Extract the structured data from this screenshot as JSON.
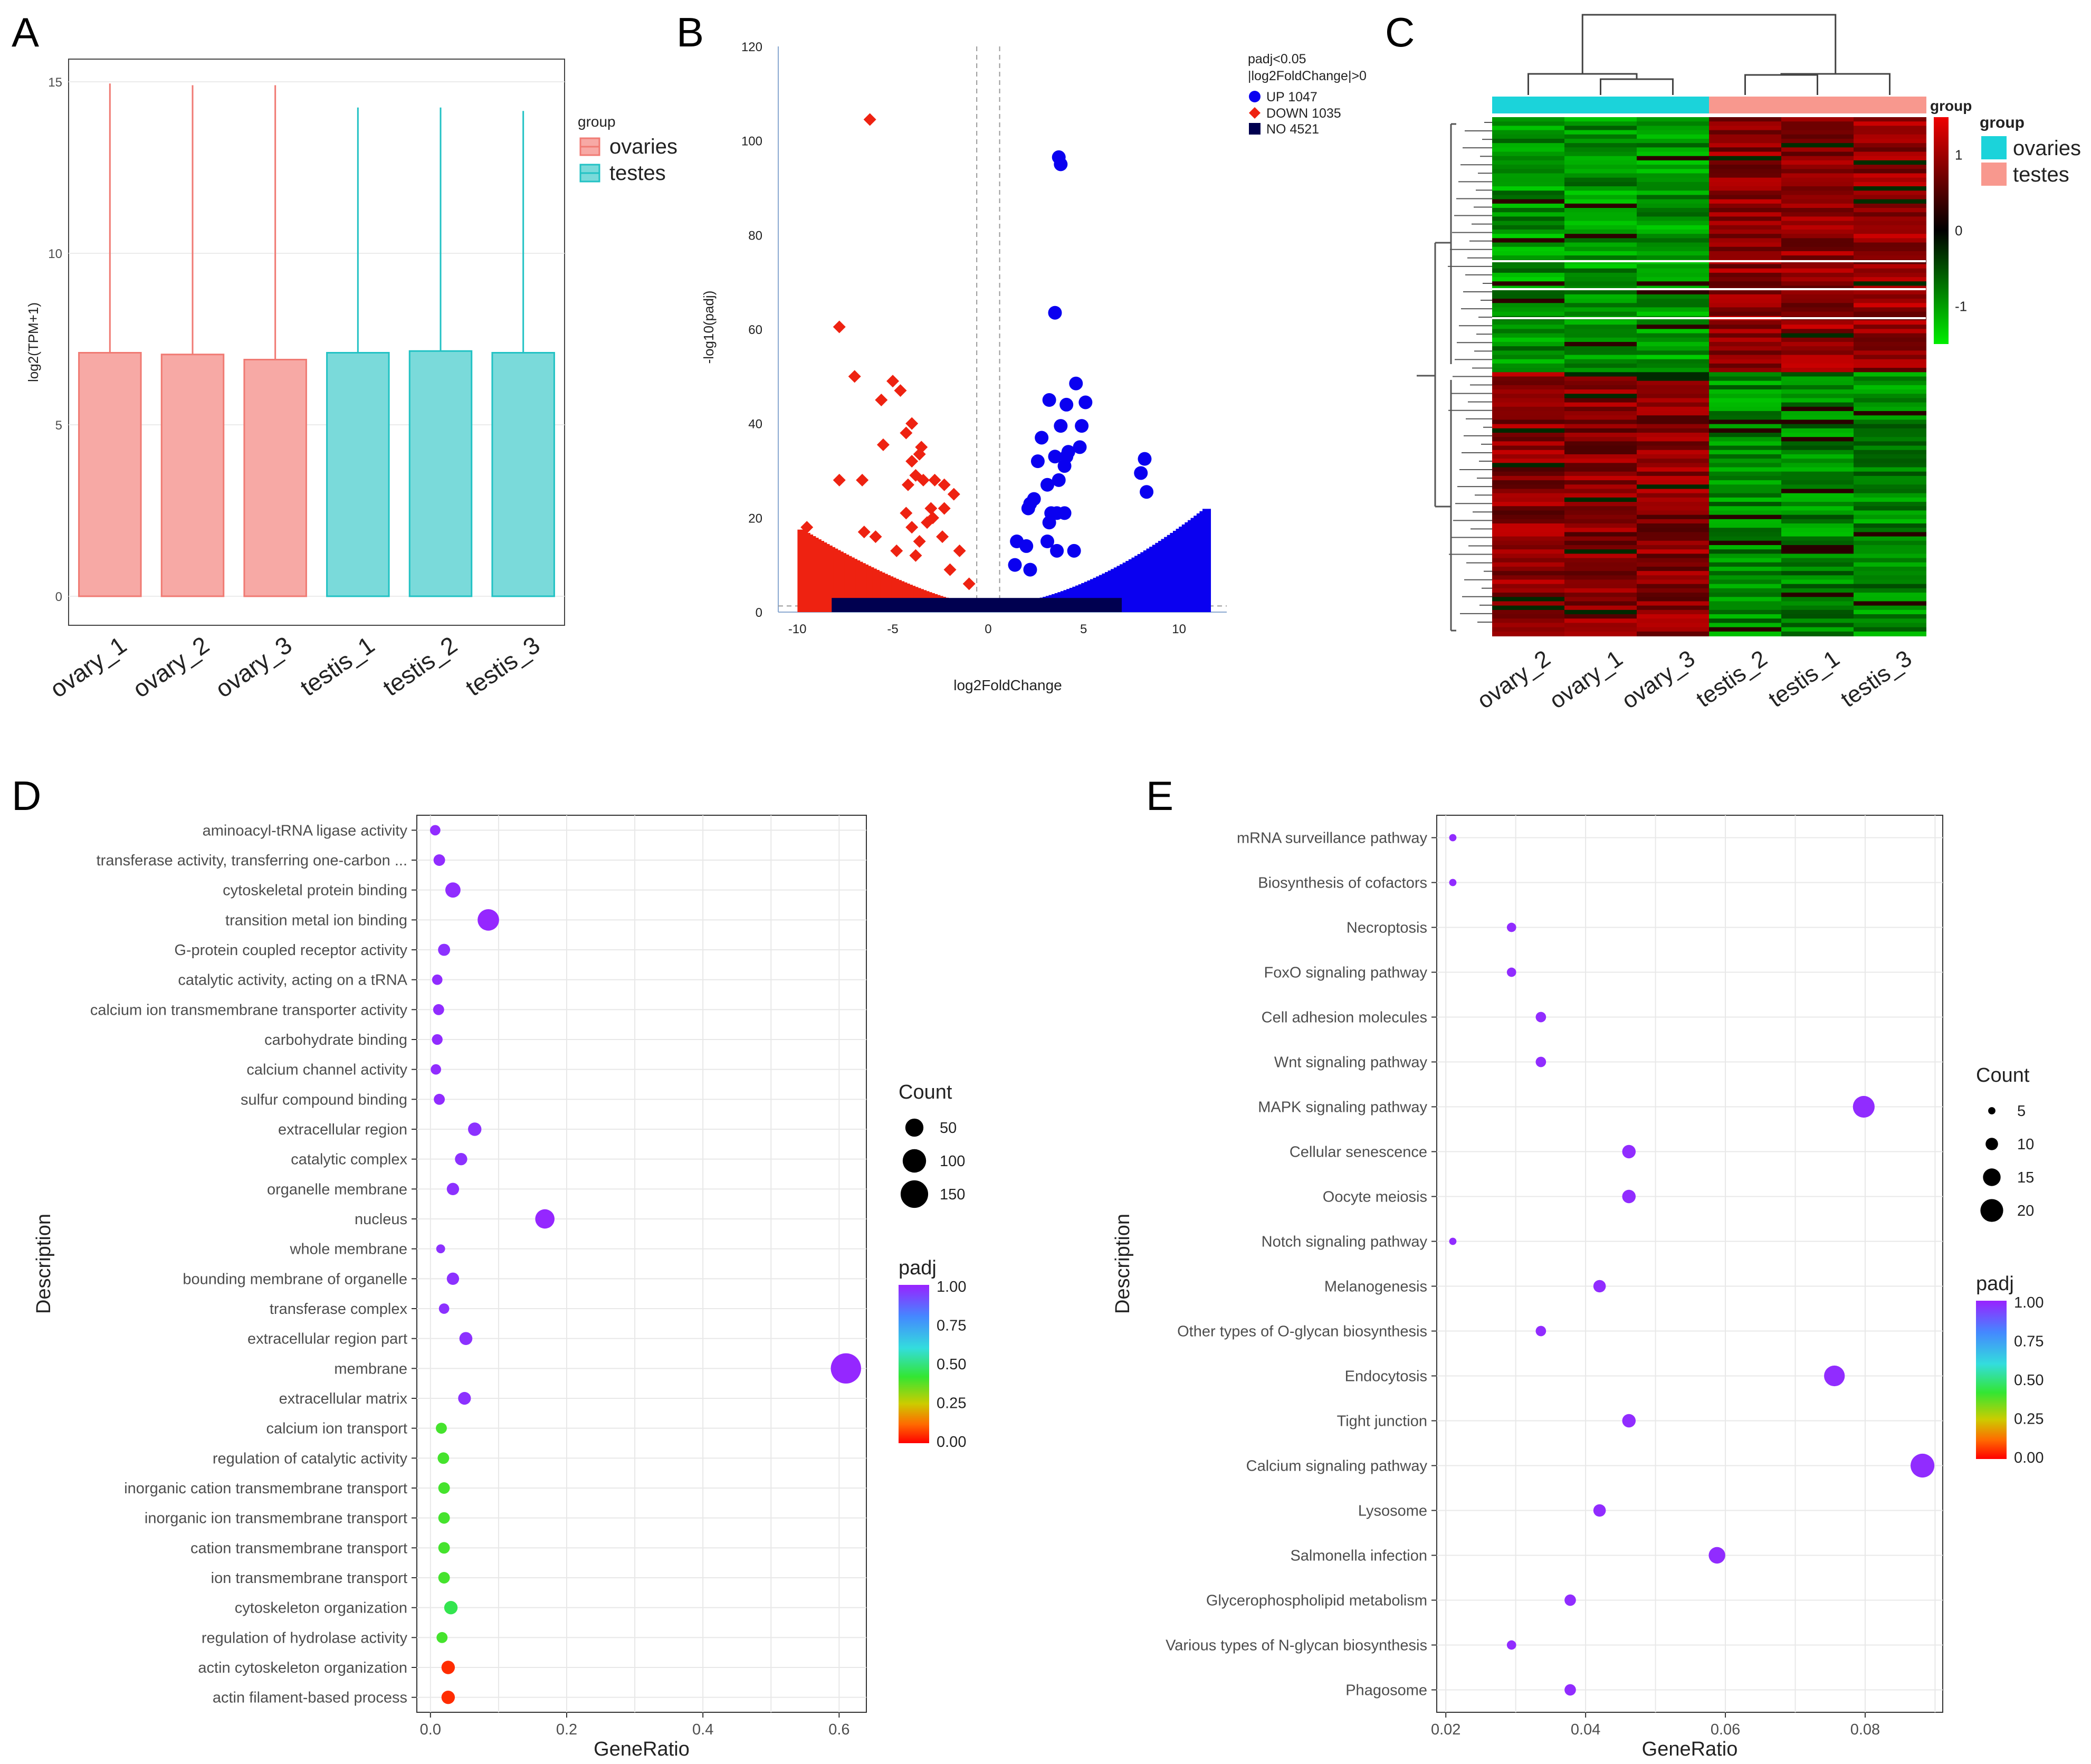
{
  "chart_data": [
    {
      "panel": "A",
      "type": "box",
      "ylabel": "log2(TPM+1)",
      "yticks": [
        "0",
        "5",
        "10",
        "15"
      ],
      "ylim": [
        0,
        15.5
      ],
      "categories": [
        "ovary_1",
        "ovary_2",
        "ovary_3",
        "testis_1",
        "testis_2",
        "testis_3"
      ],
      "upper": [
        7.1,
        7.05,
        6.9,
        7.1,
        7.15,
        7.1
      ],
      "whisker_max": [
        14.95,
        14.9,
        14.9,
        14.25,
        14.25,
        14.15
      ],
      "groups": [
        "ovaries",
        "ovaries",
        "ovaries",
        "testes",
        "testes",
        "testes"
      ],
      "legend": {
        "title": "group",
        "items": [
          "ovaries",
          "testes"
        ],
        "position": "right"
      },
      "colors": {
        "ovaries_fill": "#f7a9a5",
        "ovaries_line": "#f07a73",
        "testes_fill": "#7adada",
        "testes_line": "#22c2c4"
      }
    },
    {
      "panel": "B",
      "type": "scatter",
      "xlabel": "log2FoldChange",
      "ylabel": "-log10(padj)",
      "xticks": [
        "-10",
        "-5",
        "0",
        "5",
        "10"
      ],
      "yticks": [
        "0",
        "20",
        "40",
        "60",
        "80",
        "100",
        "120"
      ],
      "xlim": [
        -11,
        12.5
      ],
      "ylim": [
        0,
        120
      ],
      "legend": {
        "title_lines": [
          "padj<0.05",
          "|log2FoldChange|>0"
        ],
        "items": [
          "UP 1047",
          "DOWN 1035",
          "NO 4521"
        ],
        "position": "top-right"
      },
      "series": [
        {
          "name": "UP 1047",
          "color": "#0a00f0",
          "points": [
            [
              3.7,
              96.5
            ],
            [
              3.8,
              95
            ],
            [
              3.5,
              63.5
            ],
            [
              4.6,
              48.5
            ],
            [
              5.1,
              44.5
            ],
            [
              3.2,
              45
            ],
            [
              4.1,
              44
            ],
            [
              3.8,
              39.5
            ],
            [
              4.9,
              39.5
            ],
            [
              2.8,
              37
            ],
            [
              4.2,
              34
            ],
            [
              4.8,
              35
            ],
            [
              3.5,
              33
            ],
            [
              4.1,
              33
            ],
            [
              3.7,
              28
            ],
            [
              2.6,
              32
            ],
            [
              4.0,
              31
            ],
            [
              8.2,
              32.5
            ],
            [
              8.0,
              29.5
            ],
            [
              8.3,
              25.5
            ],
            [
              3.1,
              27
            ],
            [
              2.4,
              24
            ],
            [
              2.2,
              23
            ],
            [
              3.3,
              21
            ],
            [
              3.6,
              21
            ],
            [
              2.1,
              22
            ],
            [
              4.0,
              21
            ],
            [
              3.2,
              19
            ],
            [
              1.5,
              15
            ],
            [
              2.0,
              14
            ],
            [
              3.1,
              15
            ],
            [
              3.6,
              13
            ],
            [
              4.5,
              13
            ],
            [
              1.4,
              10
            ],
            [
              2.2,
              9
            ],
            [
              9.6,
              2
            ],
            [
              10.0,
              2
            ],
            [
              10.6,
              2
            ]
          ]
        },
        {
          "name": "DOWN 1035",
          "color": "#ee2211",
          "points": [
            [
              -6.2,
              104.5
            ],
            [
              -7.8,
              60.5
            ],
            [
              -7.0,
              50
            ],
            [
              -5.0,
              49
            ],
            [
              -4.6,
              47
            ],
            [
              -5.6,
              45
            ],
            [
              -4.0,
              40
            ],
            [
              -4.3,
              38
            ],
            [
              -5.5,
              35.5
            ],
            [
              -3.5,
              35
            ],
            [
              -4.0,
              32
            ],
            [
              -3.6,
              33.5
            ],
            [
              -6.6,
              28
            ],
            [
              -7.8,
              28
            ],
            [
              -3.8,
              29
            ],
            [
              -3.4,
              28
            ],
            [
              -2.8,
              28
            ],
            [
              -2.3,
              27
            ],
            [
              -4.2,
              27
            ],
            [
              -1.8,
              25
            ],
            [
              -2.3,
              22
            ],
            [
              -3.0,
              22
            ],
            [
              -4.3,
              21
            ],
            [
              -2.9,
              20
            ],
            [
              -3.2,
              19
            ],
            [
              -4.0,
              18
            ],
            [
              -6.5,
              17
            ],
            [
              -5.9,
              16
            ],
            [
              -9.5,
              18
            ],
            [
              -3.6,
              15
            ],
            [
              -2.4,
              16
            ],
            [
              -4.8,
              13
            ],
            [
              -3.8,
              12
            ],
            [
              -1.5,
              13
            ],
            [
              -2.0,
              9
            ],
            [
              -1.0,
              6
            ]
          ]
        },
        {
          "name": "NO 4521",
          "color": "#000050",
          "points": []
        }
      ]
    },
    {
      "panel": "C",
      "type": "heatmap",
      "columns": [
        "ovary_2",
        "ovary_1",
        "ovary_3",
        "testis_2",
        "testis_1",
        "testis_3"
      ],
      "annotation_label": "group",
      "colorbar_ticks": [
        "1",
        "0",
        "-1"
      ],
      "value_range": [
        -1.5,
        1.5
      ],
      "colors": {
        "high": "#ee0000",
        "mid": "#000000",
        "low": "#00ee00",
        "ovaries": "#1bd3da",
        "testes": "#f8988e"
      },
      "legend": {
        "title": "group",
        "items": [
          "ovaries",
          "testes"
        ],
        "position": "right"
      },
      "block_pattern": [
        {
          "fraction": 0.5,
          "ovary": -0.75,
          "testis": 0.75
        },
        {
          "fraction": 0.5,
          "ovary": 0.75,
          "testis": -0.75
        }
      ]
    },
    {
      "panel": "D",
      "type": "scatter",
      "xlabel": "GeneRatio",
      "ylabel": "Description",
      "xticks": [
        "0.0",
        "0.2",
        "0.4",
        "0.6"
      ],
      "xlim": [
        -0.02,
        0.64
      ],
      "categories": [
        "aminoacyl-tRNA ligase activity",
        "transferase activity, transferring one-carbon ...",
        "cytoskeletal protein binding",
        "transition metal ion binding",
        "G-protein coupled receptor activity",
        "catalytic activity, acting on a tRNA",
        "calcium ion transmembrane transporter activity",
        "carbohydrate binding",
        "calcium channel activity",
        "sulfur compound binding",
        "extracellular region",
        "catalytic complex",
        "organelle membrane",
        "nucleus",
        "whole membrane",
        "bounding membrane of organelle",
        "transferase complex",
        "extracellular region part",
        "membrane",
        "extracellular matrix",
        "calcium ion transport",
        "regulation of catalytic activity",
        "inorganic cation transmembrane transport",
        "inorganic ion transmembrane transport",
        "cation transmembrane transport",
        "ion transmembrane transport",
        "cytoskeleton organization",
        "regulation of hydrolase activity",
        "actin cytoskeleton organization",
        "actin filament-based process"
      ],
      "x": [
        0.007,
        0.013,
        0.033,
        0.085,
        0.02,
        0.01,
        0.012,
        0.01,
        0.008,
        0.013,
        0.065,
        0.045,
        0.033,
        0.168,
        0.015,
        0.033,
        0.02,
        0.052,
        0.61,
        0.05,
        0.016,
        0.019,
        0.02,
        0.02,
        0.02,
        0.02,
        0.03,
        0.017,
        0.026,
        0.026
      ],
      "count": [
        8,
        12,
        30,
        80,
        14,
        8,
        10,
        9,
        8,
        10,
        20,
        15,
        15,
        60,
        4,
        15,
        8,
        18,
        190,
        17,
        10,
        12,
        12,
        12,
        12,
        12,
        20,
        10,
        20,
        20
      ],
      "padj": [
        0.98,
        0.98,
        0.98,
        0.99,
        0.97,
        0.98,
        0.98,
        0.98,
        0.98,
        0.98,
        0.97,
        0.97,
        0.97,
        0.99,
        0.97,
        0.97,
        0.97,
        0.97,
        0.99,
        0.97,
        0.4,
        0.4,
        0.4,
        0.4,
        0.4,
        0.4,
        0.45,
        0.4,
        0.05,
        0.05
      ],
      "legend": {
        "count_title": "Count",
        "count_items": [
          "50",
          "100",
          "150"
        ],
        "padj_title": "padj",
        "padj_ticks": [
          "1.00",
          "0.75",
          "0.50",
          "0.25",
          "0.00"
        ],
        "position": "right"
      }
    },
    {
      "panel": "E",
      "type": "scatter",
      "xlabel": "GeneRatio",
      "ylabel": "Description",
      "xticks": [
        "0.02",
        "0.04",
        "0.06",
        "0.08"
      ],
      "xlim": [
        0.0187,
        0.0911
      ],
      "categories": [
        "mRNA surveillance pathway",
        "Biosynthesis of cofactors",
        "Necroptosis",
        "FoxO signaling pathway",
        "Cell adhesion molecules",
        "Wnt signaling pathway",
        "MAPK signaling pathway",
        "Cellular senescence",
        "Oocyte meiosis",
        "Notch signaling pathway",
        "Melanogenesis",
        "Other types of O-glycan biosynthesis",
        "Endocytosis",
        "Tight junction",
        "Calcium signaling pathway",
        "Lysosome",
        "Salmonella infection",
        "Glycerophospholipid metabolism",
        "Various types of N-glycan biosynthesis",
        "Phagosome"
      ],
      "x": [
        0.021,
        0.021,
        0.0294,
        0.0294,
        0.0336,
        0.0336,
        0.0798,
        0.0462,
        0.0462,
        0.021,
        0.042,
        0.0336,
        0.0756,
        0.0462,
        0.0882,
        0.042,
        0.0588,
        0.0378,
        0.0294,
        0.0378
      ],
      "count": [
        5,
        5,
        7,
        7,
        8,
        8,
        19,
        11,
        11,
        5,
        10,
        8,
        18,
        11,
        21,
        10,
        14,
        9,
        7,
        9
      ],
      "padj": [
        0.98,
        0.98,
        0.98,
        0.98,
        0.98,
        0.98,
        0.98,
        0.98,
        0.98,
        0.98,
        0.98,
        0.98,
        0.98,
        0.98,
        0.98,
        0.98,
        0.98,
        0.98,
        0.98,
        0.98
      ],
      "legend": {
        "count_title": "Count",
        "count_items": [
          "5",
          "10",
          "15",
          "20"
        ],
        "padj_title": "padj",
        "padj_ticks": [
          "1.00",
          "0.75",
          "0.50",
          "0.25",
          "0.00"
        ],
        "position": "right"
      }
    }
  ],
  "panel_labels": [
    "A",
    "B",
    "C",
    "D",
    "E"
  ]
}
